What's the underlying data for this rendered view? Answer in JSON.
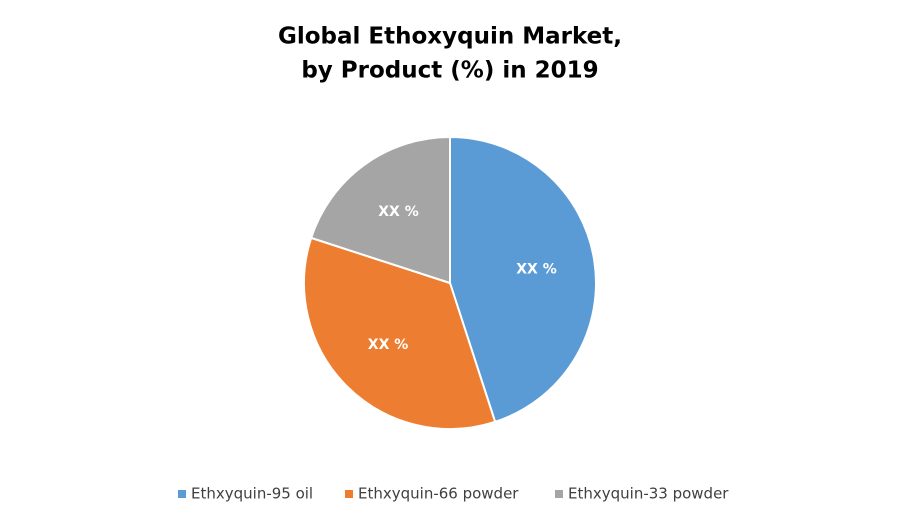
{
  "chart_data": {
    "type": "pie",
    "title": [
      "Global Ethoxyquin Market,",
      "by Product (%) in 2019"
    ],
    "categories": [
      "Ethxyquin-95 oil",
      "Ethxyquin-66 powder",
      "Ethxyquin-33 powder"
    ],
    "values": [
      45,
      35,
      20
    ],
    "value_labels": [
      "XX %",
      "XX %",
      "XX %"
    ],
    "colors": [
      "#5b9bd5",
      "#ed7d31",
      "#a5a5a5"
    ],
    "legend": "bottom"
  }
}
